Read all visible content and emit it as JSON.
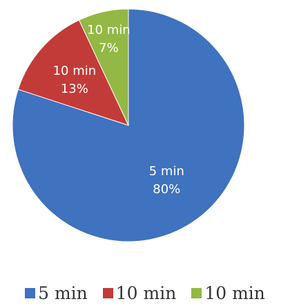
{
  "chart_data": {
    "type": "pie",
    "title": "",
    "slices": [
      {
        "label": "5 min",
        "value": 80,
        "value_label": "80%",
        "color": "#3f72bf"
      },
      {
        "label": "10 min",
        "value": 13,
        "value_label": "13%",
        "color": "#c33b38"
      },
      {
        "label": "10 min",
        "value": 7,
        "value_label": "7%",
        "color": "#93b844"
      }
    ],
    "legend_position": "bottom"
  }
}
